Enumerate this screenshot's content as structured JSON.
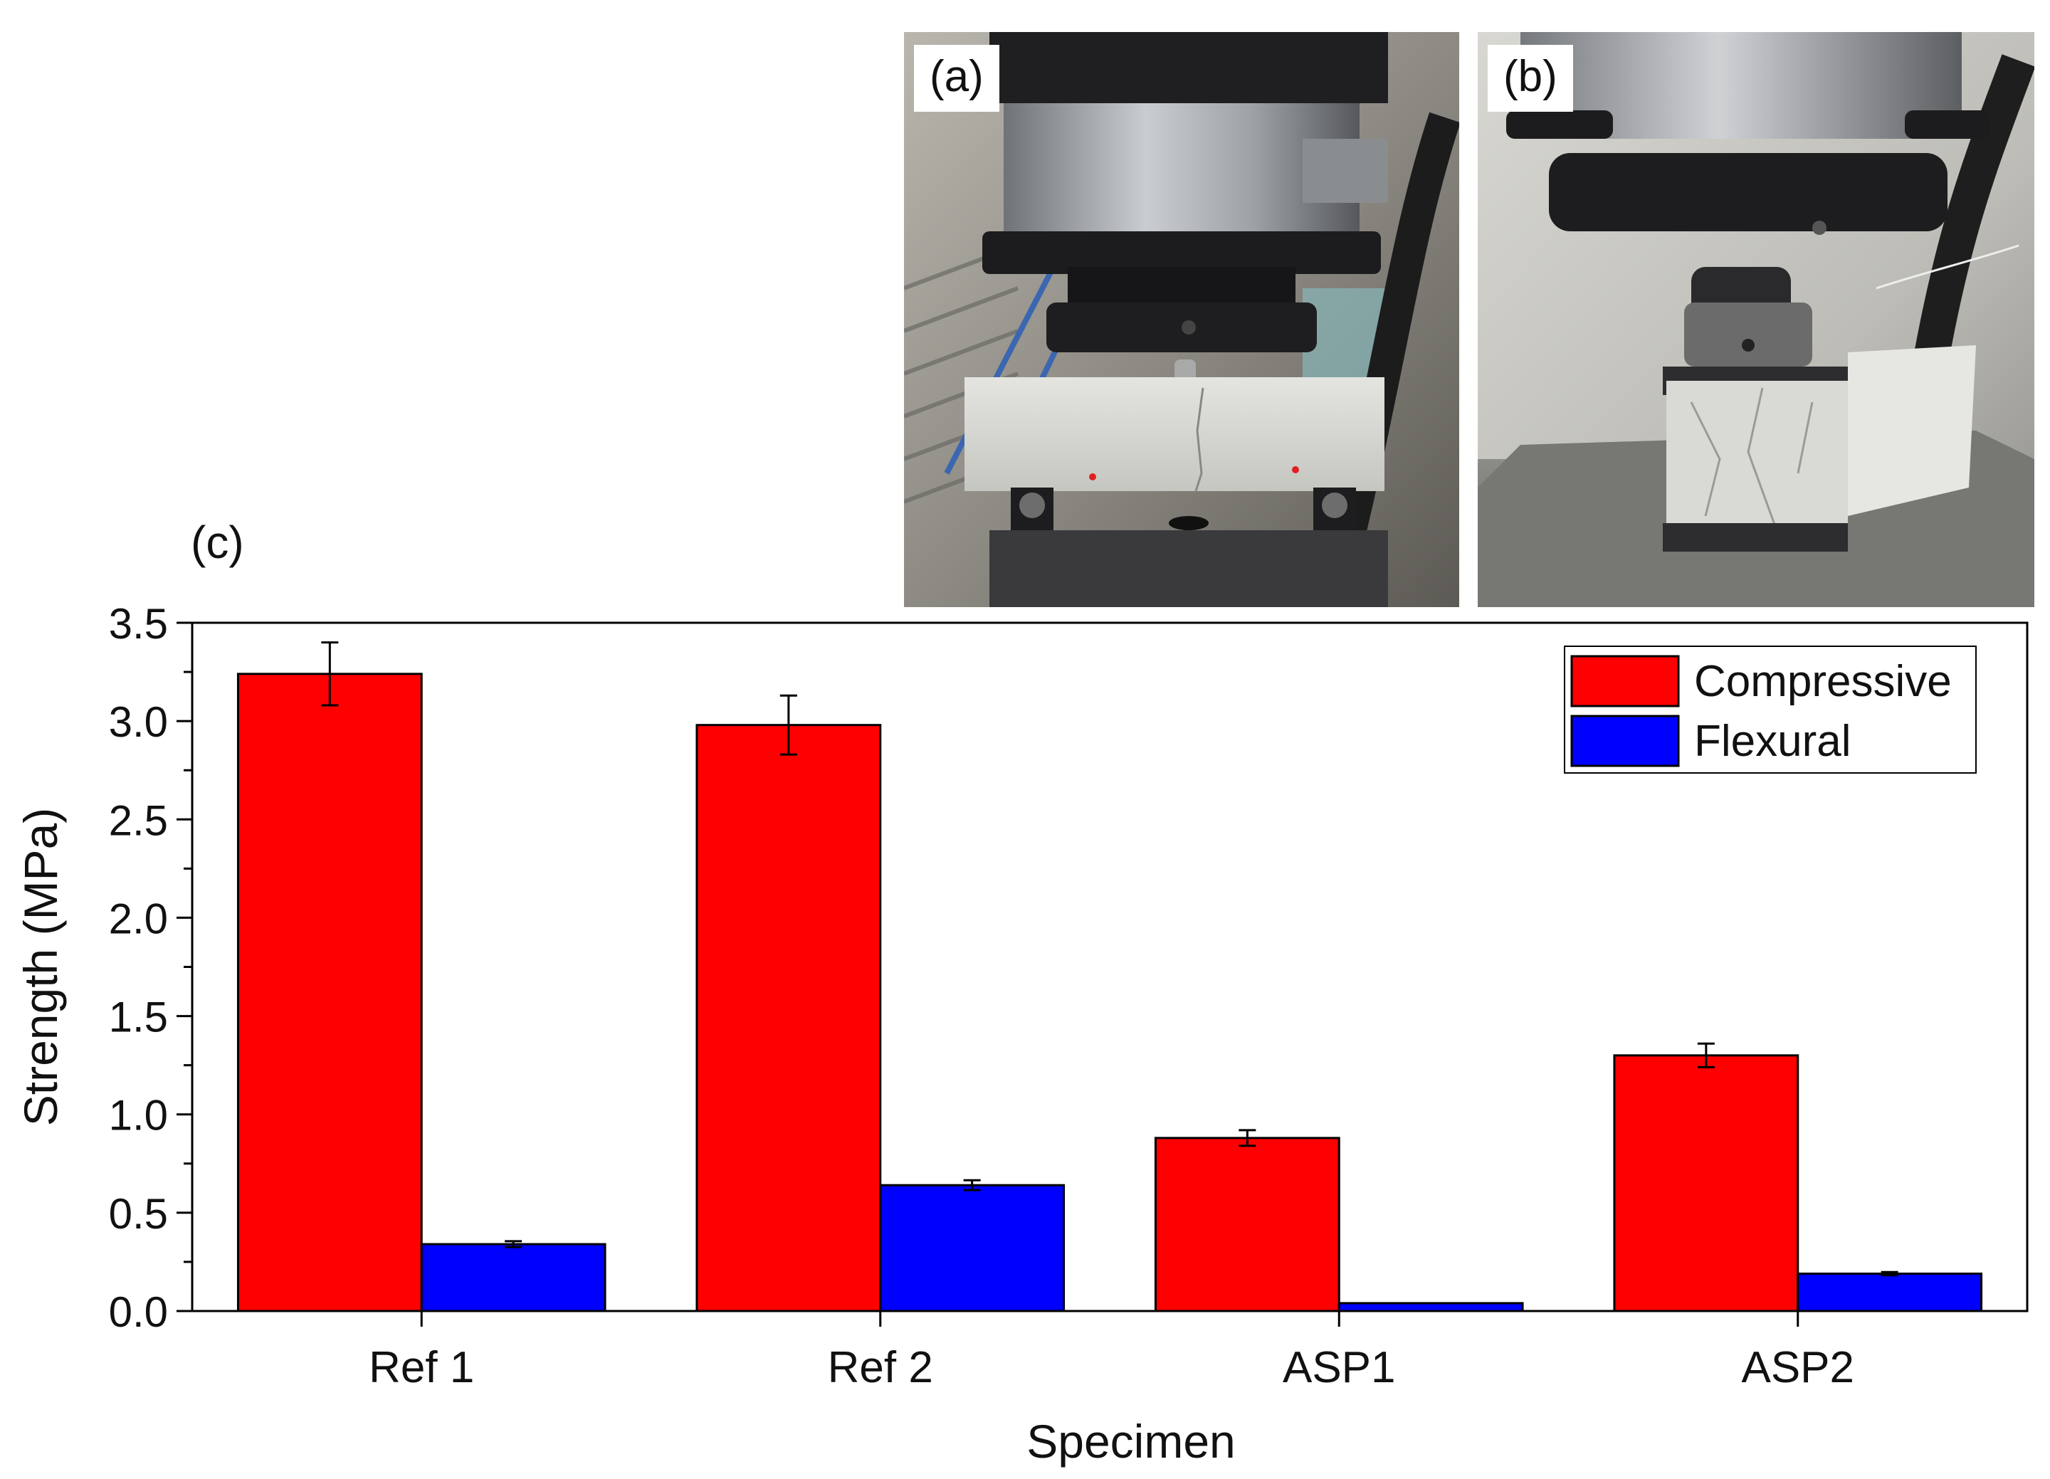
{
  "panels": {
    "a": {
      "label": "(a)",
      "description": "Flexural strength test: prism specimen on two supports under press head"
    },
    "b": {
      "label": "(b)",
      "description": "Compressive strength test: prism fragment between steel loading plates"
    },
    "c": {
      "label": "(c)"
    }
  },
  "colors": {
    "compressive": "#ff0000",
    "flexural": "#0000ff",
    "axis": "#000000"
  },
  "chart_data": {
    "type": "bar",
    "title": "",
    "xlabel": "Specimen",
    "ylabel": "Strength (MPa)",
    "ylim": [
      0,
      3.5
    ],
    "yticks": [
      "0.0",
      "0.5",
      "1.0",
      "1.5",
      "2.0",
      "2.5",
      "3.0",
      "3.5"
    ],
    "categories": [
      "Ref 1",
      "Ref 2",
      "ASP1",
      "ASP2"
    ],
    "series": [
      {
        "name": "Compressive",
        "values": [
          3.24,
          2.98,
          0.88,
          1.3
        ],
        "errors": [
          0.16,
          0.15,
          0.04,
          0.06
        ]
      },
      {
        "name": "Flexural",
        "values": [
          0.34,
          0.64,
          0.04,
          0.19
        ],
        "errors": [
          0.015,
          0.025,
          0.0,
          0.008
        ]
      }
    ],
    "legend": {
      "position": "top-right",
      "entries": [
        "Compressive",
        "Flexural"
      ]
    }
  }
}
